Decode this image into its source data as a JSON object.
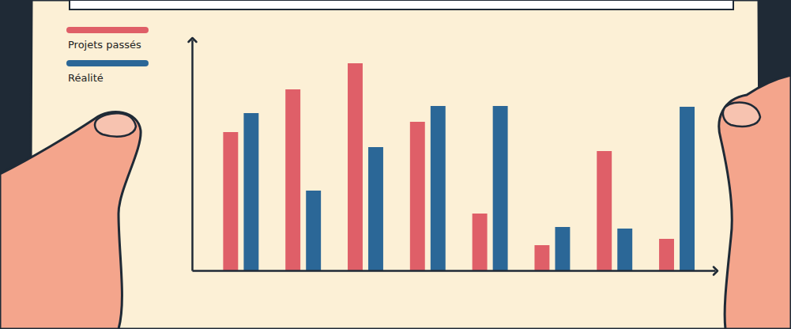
{
  "chart_data": {
    "type": "bar",
    "categories": [
      null,
      null,
      null,
      null,
      null,
      null,
      null,
      null
    ],
    "series": [
      {
        "name": "Projets passés",
        "color": "#df5f68",
        "values": [
          175,
          229,
          262,
          188,
          72,
          32,
          151,
          40
        ]
      },
      {
        "name": "Réalité",
        "color": "#2b6797",
        "values": [
          199,
          101,
          156,
          208,
          208,
          55,
          53,
          207
        ]
      }
    ],
    "ylim": [
      0,
      292
    ],
    "tick_labels": false,
    "legend": "top-left"
  }
}
